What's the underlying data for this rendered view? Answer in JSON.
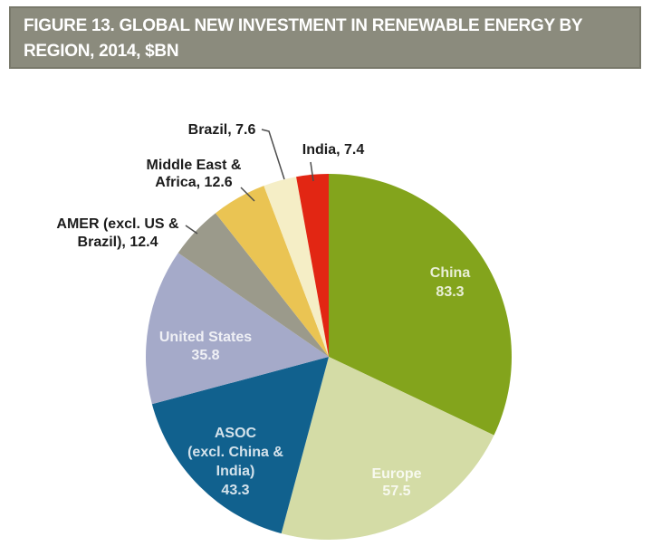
{
  "header": {
    "title_line1": "FIGURE 13. GLOBAL NEW INVESTMENT IN RENEWABLE ENERGY BY",
    "title_line2": "REGION, 2014, $BN",
    "background": "#8b8b7d",
    "text_color": "#ffffff"
  },
  "chart_data": {
    "type": "pie",
    "title": "FIGURE 13. GLOBAL NEW INVESTMENT IN RENEWABLE ENERGY BY REGION, 2014, $BN",
    "start_angle_deg": 0,
    "direction": "clockwise",
    "legend_position": "labels-on-chart",
    "slices": [
      {
        "name": "China",
        "value": 83.3,
        "color": "#83a41c",
        "label_lines": [
          "China",
          "83.3"
        ],
        "label_placement": "inside"
      },
      {
        "name": "Europe",
        "value": 57.5,
        "color": "#d4dca6",
        "label_lines": [
          "Europe",
          "57.5"
        ],
        "label_placement": "inside"
      },
      {
        "name": "ASOC (excl. China & India)",
        "value": 43.3,
        "color": "#11618e",
        "label_lines": [
          "ASOC",
          "(excl. China &",
          "India)",
          "43.3"
        ],
        "label_placement": "inside"
      },
      {
        "name": "United States",
        "value": 35.8,
        "color": "#a5aac9",
        "label_lines": [
          "United States",
          "35.8"
        ],
        "label_placement": "inside"
      },
      {
        "name": "AMER (excl. US & Brazil)",
        "value": 12.4,
        "color": "#9b9a8b",
        "label_lines": [
          "AMER (excl. US &",
          "Brazil), 12.4"
        ],
        "label_placement": "callout"
      },
      {
        "name": "Middle East & Africa",
        "value": 12.6,
        "color": "#eac453",
        "label_lines": [
          "Middle East &",
          "Africa, 12.6"
        ],
        "label_placement": "callout"
      },
      {
        "name": "Brazil",
        "value": 7.6,
        "color": "#f5eec6",
        "label_lines": [
          "Brazil, 7.6"
        ],
        "label_placement": "callout"
      },
      {
        "name": "India",
        "value": 7.4,
        "color": "#e22613",
        "label_lines": [
          "India, 7.4"
        ],
        "label_placement": "callout"
      }
    ],
    "inside_label_color": "rgba(255,255,255,0.82)",
    "callout_label_color": "#1c1c1c",
    "leader_line_color": "#4d4d4d"
  }
}
